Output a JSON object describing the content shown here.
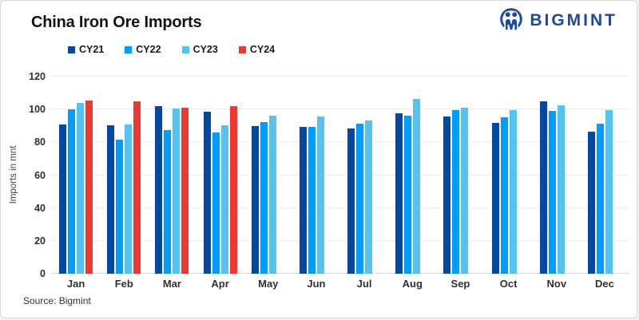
{
  "header": {
    "title": "China Iron Ore Imports",
    "brand": "BIGMINT",
    "brand_color": "#1b4a9e"
  },
  "chart_data": {
    "type": "bar",
    "title": "China Iron Ore Imports",
    "categories": [
      "Jan",
      "Feb",
      "Mar",
      "Apr",
      "May",
      "Jun",
      "Jul",
      "Aug",
      "Sep",
      "Oct",
      "Nov",
      "Dec"
    ],
    "series": [
      {
        "name": "CY21",
        "color": "#0548a2",
        "values": [
          91.0,
          90.6,
          102.1,
          98.6,
          89.8,
          89.4,
          88.5,
          97.5,
          95.6,
          91.6,
          104.9,
          86.3
        ]
      },
      {
        "name": "CY22",
        "color": "#009dfc",
        "values": [
          100.2,
          81.7,
          87.6,
          86.2,
          92.5,
          89.3,
          91.3,
          96.4,
          99.7,
          95.0,
          98.9,
          91.2
        ]
      },
      {
        "name": "CY23",
        "color": "#56c2f0",
        "values": [
          104.2,
          91.0,
          100.5,
          90.6,
          96.0,
          95.6,
          93.5,
          106.4,
          101.3,
          99.5,
          102.6,
          99.4
        ]
      },
      {
        "name": "CY24",
        "color": "#ee3831",
        "values": [
          105.2,
          104.9,
          100.9,
          101.8,
          null,
          null,
          null,
          null,
          null,
          null,
          null,
          null
        ]
      }
    ],
    "xlabel": "",
    "ylabel": "Imports in mnt",
    "ylim": [
      0,
      120
    ],
    "yticks": [
      0,
      20,
      40,
      60,
      80,
      100,
      120
    ],
    "grid": true,
    "legend_position": "top"
  },
  "footer": {
    "source": "Source: Bigmint"
  }
}
